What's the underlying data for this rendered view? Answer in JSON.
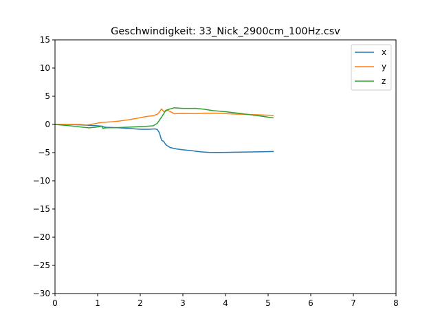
{
  "chart_data": {
    "type": "line",
    "title": "Geschwindigkeit: 33_Nick_2900cm_100Hz.csv",
    "xlabel": "",
    "ylabel": "",
    "xlim": [
      0,
      8
    ],
    "ylim": [
      -30,
      15
    ],
    "xticks": [
      0,
      1,
      2,
      3,
      4,
      5,
      6,
      7,
      8
    ],
    "yticks": [
      -30,
      -25,
      -20,
      -15,
      -10,
      -5,
      0,
      5,
      10,
      15
    ],
    "grid": false,
    "legend_position": "top-right",
    "series": [
      {
        "name": "x",
        "color": "#1f77b4",
        "points": [
          [
            0,
            0
          ],
          [
            0.3,
            -0.02
          ],
          [
            0.6,
            -0.08
          ],
          [
            0.9,
            -0.2
          ],
          [
            1.0,
            -0.25
          ],
          [
            1.1,
            -0.3
          ],
          [
            1.15,
            -0.45
          ],
          [
            1.2,
            -0.5
          ],
          [
            1.5,
            -0.6
          ],
          [
            1.8,
            -0.75
          ],
          [
            2.0,
            -0.85
          ],
          [
            2.2,
            -0.85
          ],
          [
            2.35,
            -0.8
          ],
          [
            2.4,
            -0.9
          ],
          [
            2.45,
            -1.5
          ],
          [
            2.5,
            -2.8
          ],
          [
            2.55,
            -3.0
          ],
          [
            2.6,
            -3.6
          ],
          [
            2.7,
            -4.1
          ],
          [
            2.85,
            -4.35
          ],
          [
            3.0,
            -4.5
          ],
          [
            3.2,
            -4.65
          ],
          [
            3.4,
            -4.85
          ],
          [
            3.6,
            -4.95
          ],
          [
            3.8,
            -4.97
          ],
          [
            4.0,
            -4.95
          ],
          [
            4.5,
            -4.9
          ],
          [
            5.13,
            -4.8
          ]
        ]
      },
      {
        "name": "y",
        "color": "#ff7f0e",
        "points": [
          [
            0,
            0
          ],
          [
            0.3,
            0
          ],
          [
            0.6,
            0
          ],
          [
            0.75,
            -0.1
          ],
          [
            0.9,
            0.1
          ],
          [
            1.1,
            0.35
          ],
          [
            1.3,
            0.45
          ],
          [
            1.5,
            0.6
          ],
          [
            1.7,
            0.8
          ],
          [
            1.9,
            1.05
          ],
          [
            2.1,
            1.35
          ],
          [
            2.3,
            1.55
          ],
          [
            2.4,
            1.8
          ],
          [
            2.45,
            2.2
          ],
          [
            2.5,
            2.75
          ],
          [
            2.55,
            2.3
          ],
          [
            2.65,
            2.5
          ],
          [
            2.75,
            2.1
          ],
          [
            2.8,
            1.9
          ],
          [
            3.0,
            1.95
          ],
          [
            3.3,
            1.9
          ],
          [
            3.5,
            2.0
          ],
          [
            3.8,
            2.0
          ],
          [
            4.2,
            1.85
          ],
          [
            4.6,
            1.75
          ],
          [
            5.13,
            1.6
          ]
        ]
      },
      {
        "name": "z",
        "color": "#2ca02c",
        "points": [
          [
            0,
            0
          ],
          [
            0.3,
            -0.2
          ],
          [
            0.6,
            -0.45
          ],
          [
            0.8,
            -0.6
          ],
          [
            1.0,
            -0.45
          ],
          [
            1.1,
            -0.3
          ],
          [
            1.12,
            -0.7
          ],
          [
            1.2,
            -0.6
          ],
          [
            1.5,
            -0.55
          ],
          [
            1.8,
            -0.45
          ],
          [
            2.1,
            -0.35
          ],
          [
            2.3,
            -0.25
          ],
          [
            2.4,
            0.2
          ],
          [
            2.5,
            1.3
          ],
          [
            2.6,
            2.5
          ],
          [
            2.7,
            2.75
          ],
          [
            2.8,
            2.95
          ],
          [
            3.0,
            2.85
          ],
          [
            3.3,
            2.85
          ],
          [
            3.5,
            2.7
          ],
          [
            3.7,
            2.45
          ],
          [
            4.0,
            2.25
          ],
          [
            4.3,
            2.0
          ],
          [
            4.6,
            1.7
          ],
          [
            4.9,
            1.4
          ],
          [
            5.13,
            1.15
          ]
        ]
      }
    ]
  }
}
